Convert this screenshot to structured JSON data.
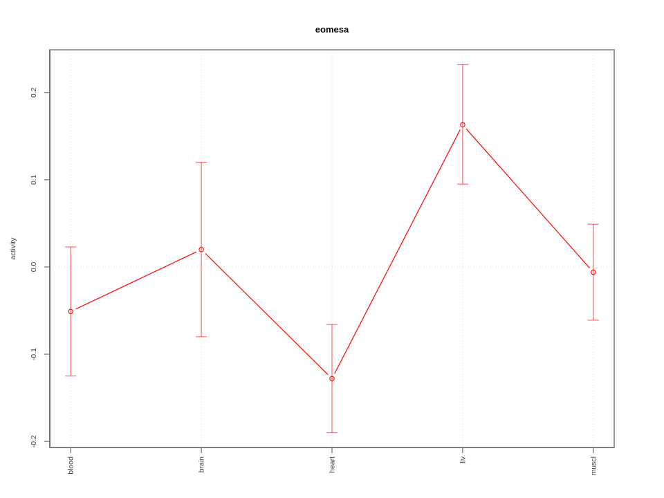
{
  "chart_data": {
    "type": "line",
    "title": "eomesa",
    "xlabel": "",
    "ylabel": "activity",
    "categories": [
      "blood",
      "brain",
      "heart",
      "liv",
      "muscl"
    ],
    "series": [
      {
        "name": "activity",
        "values": [
          -0.051,
          0.02,
          -0.128,
          0.163,
          -0.006
        ],
        "error_low": [
          -0.125,
          -0.08,
          -0.19,
          0.095,
          -0.061
        ],
        "error_high": [
          0.023,
          0.12,
          -0.066,
          0.232,
          0.049
        ]
      }
    ],
    "ylim": [
      -0.207,
      0.249
    ],
    "yticks": [
      -0.2,
      -0.1,
      0.0,
      0.1,
      0.2
    ],
    "ytick_labels": [
      "-0.2",
      "-0.1",
      "0.0",
      "0.1",
      "0.2"
    ],
    "grid": {
      "vertical_at_categories": true,
      "horizontal_at_zero": true,
      "style": "dotted"
    },
    "legend_position": "none",
    "marker": "open-circle",
    "colors": {
      "line": "#ff0000",
      "marker": "#ff0000",
      "error_bar": "rgba(255,0,0,0.5)",
      "box_border": "#9a9a9a",
      "axis_left": "#6e6e6e",
      "axis_bottom": "#808080",
      "tick": "#6e6e6e",
      "grid": "#d9d9d9",
      "title_text": "#000000",
      "tick_text": "#404040"
    }
  }
}
